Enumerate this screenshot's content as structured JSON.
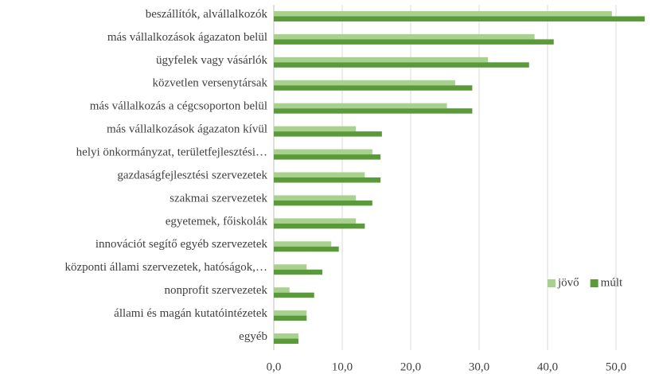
{
  "chart_data": {
    "type": "bar",
    "orientation": "horizontal",
    "categories": [
      "beszállítók, alvállalkozók",
      "más vállalkozások ágazaton belül",
      "ügyfelek vagy vásárlók",
      "közvetlen versenytársak",
      "más vállalkozás a cégcsoporton belül",
      "más vállalkozások ágazaton kívül",
      "helyi önkormányzat, területfejlesztési…",
      "gazdaságfejlesztési szervezetek",
      "szakmai szervezetek",
      "egyetemek, főiskolák",
      "innovációt segítő egyéb szervezetek",
      "központi állami szervezetek, hatóságok,…",
      "nonprofit szervezetek",
      "állami és magán kutatóintézetek",
      "egyéb"
    ],
    "series": [
      {
        "name": "jövő",
        "color": "#a9d18e",
        "values": [
          49.4,
          38.1,
          31.3,
          26.5,
          25.3,
          12.0,
          14.4,
          13.3,
          12.0,
          12.0,
          8.4,
          4.8,
          2.3,
          4.8,
          3.6
        ]
      },
      {
        "name": "múlt",
        "color": "#5a9a3a",
        "values": [
          54.2,
          40.9,
          37.3,
          29.0,
          29.0,
          15.8,
          15.6,
          15.6,
          14.4,
          13.3,
          9.5,
          7.1,
          5.9,
          4.8,
          3.6
        ]
      }
    ],
    "xlim": [
      0,
      55
    ],
    "xticks": [
      {
        "value": 0,
        "label": "0,0"
      },
      {
        "value": 10,
        "label": "10,0"
      },
      {
        "value": 20,
        "label": "20,0"
      },
      {
        "value": 30,
        "label": "30,0"
      },
      {
        "value": 40,
        "label": "40,0"
      },
      {
        "value": 50,
        "label": "50,0"
      }
    ],
    "grid": true,
    "legend": "right"
  }
}
